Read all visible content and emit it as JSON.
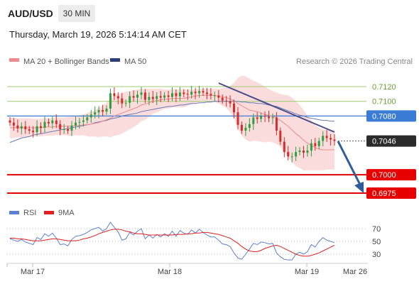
{
  "header": {
    "pair": "AUD/USD",
    "timeframe": "30 MIN",
    "datetime": "Thursday, March 19, 2026 5:14:14 AM CET"
  },
  "legend": {
    "ma20": "MA 20 + Bollinger Bands",
    "ma50": "MA 50",
    "credit": "Research © 2026 Trading Central"
  },
  "rsi_legend": {
    "rsi": "RSI",
    "ma": "9MA"
  },
  "colors": {
    "up": "#2e9e3e",
    "down": "#d62b2b",
    "ma20": "#f08a8a",
    "band": "#f9d0d0",
    "ma50": "#6a7bb5",
    "trend": "#4a4e8a",
    "arrow": "#2f5d9c",
    "resist": "#9ccc70",
    "current": "#3a7bd5",
    "support": "#e60000",
    "rsi": "#5b7fd6",
    "rsi_ma": "#e02020"
  },
  "chart_data": {
    "type": "candlestick",
    "levels": [
      {
        "value": 0.712,
        "label": "0.7120",
        "kind": "resistance"
      },
      {
        "value": 0.71,
        "label": "0.7100",
        "kind": "resistance"
      },
      {
        "value": 0.708,
        "label": "0.7080",
        "kind": "pivot"
      },
      {
        "value": 0.7046,
        "label": "0.7046",
        "kind": "current"
      },
      {
        "value": 0.7,
        "label": "0.7000",
        "kind": "support"
      },
      {
        "value": 0.6975,
        "label": "0.6975",
        "kind": "support"
      }
    ],
    "x_ticks": [
      "Mar 17",
      "Mar 18",
      "Mar 19",
      "Mar 26"
    ],
    "rsi_ticks": [
      70,
      50,
      30
    ],
    "closes": [
      0.7071,
      0.7067,
      0.7063,
      0.7066,
      0.7062,
      0.706,
      0.7058,
      0.7066,
      0.7064,
      0.7072,
      0.707,
      0.7074,
      0.7069,
      0.7062,
      0.7062,
      0.706,
      0.7067,
      0.7071,
      0.7072,
      0.7074,
      0.7078,
      0.7082,
      0.7085,
      0.7088,
      0.7086,
      0.709,
      0.7111,
      0.7107,
      0.7104,
      0.7097,
      0.7098,
      0.7107,
      0.7105,
      0.7109,
      0.7112,
      0.7102,
      0.7106,
      0.7103,
      0.7107,
      0.7105,
      0.7108,
      0.7106,
      0.7111,
      0.7107,
      0.7112,
      0.711,
      0.7109,
      0.7113,
      0.7111,
      0.7114,
      0.7112,
      0.711,
      0.7108,
      0.7108,
      0.7105,
      0.7101,
      0.71,
      0.7097,
      0.7085,
      0.7068,
      0.706,
      0.7064,
      0.7069,
      0.7078,
      0.7076,
      0.708,
      0.7079,
      0.7077,
      0.7078,
      0.706,
      0.7045,
      0.7031,
      0.7025,
      0.7025,
      0.7031,
      0.7033,
      0.703,
      0.7033,
      0.7043,
      0.7039,
      0.7046,
      0.7053,
      0.705,
      0.7048,
      0.7046
    ],
    "ma20": [
      0.7064,
      0.7064,
      0.7064,
      0.7064,
      0.7064,
      0.7064,
      0.7064,
      0.7064,
      0.7064,
      0.7065,
      0.7065,
      0.7065,
      0.7066,
      0.7066,
      0.7066,
      0.7066,
      0.7066,
      0.7067,
      0.7067,
      0.7068,
      0.7068,
      0.7069,
      0.707,
      0.7071,
      0.7073,
      0.7075,
      0.7077,
      0.708,
      0.7082,
      0.7084,
      0.7086,
      0.7088,
      0.709,
      0.7092,
      0.7095,
      0.7096,
      0.7098,
      0.71,
      0.7101,
      0.7102,
      0.7103,
      0.7103,
      0.7104,
      0.7104,
      0.7104,
      0.7104,
      0.7105,
      0.7106,
      0.7107,
      0.7108,
      0.7108,
      0.7108,
      0.7108,
      0.7108,
      0.7107,
      0.7106,
      0.7105,
      0.7103,
      0.7101,
      0.7097,
      0.7094,
      0.7091,
      0.7088,
      0.7087,
      0.7086,
      0.7084,
      0.7082,
      0.7081,
      0.7079,
      0.7077,
      0.7074,
      0.707,
      0.7066,
      0.7061,
      0.7056,
      0.7052,
      0.7047,
      0.7043,
      0.704,
      0.7037,
      0.7035,
      0.7034,
      0.7034,
      0.7034,
      0.7034
    ],
    "ma50": [
      0.7044,
      0.7046,
      0.7048,
      0.705,
      0.7051,
      0.7052,
      0.7054,
      0.7055,
      0.7056,
      0.7057,
      0.7058,
      0.7059,
      0.706,
      0.7061,
      0.7062,
      0.7063,
      0.7064,
      0.7065,
      0.7066,
      0.7067,
      0.7068,
      0.7069,
      0.7071,
      0.7072,
      0.7073,
      0.7074,
      0.7076,
      0.7077,
      0.7078,
      0.708,
      0.7081,
      0.7082,
      0.7083,
      0.7084,
      0.7086,
      0.7087,
      0.7088,
      0.7089,
      0.709,
      0.7091,
      0.7092,
      0.7093,
      0.7093,
      0.7094,
      0.7095,
      0.7095,
      0.7096,
      0.7097,
      0.7097,
      0.7098,
      0.7098,
      0.7099,
      0.7099,
      0.71,
      0.71,
      0.71,
      0.71,
      0.71,
      0.71,
      0.71,
      0.7099,
      0.7099,
      0.7098,
      0.7098,
      0.7097,
      0.7097,
      0.7096,
      0.7095,
      0.7094,
      0.7093,
      0.7091,
      0.7089,
      0.7087,
      0.7085,
      0.7083,
      0.7081,
      0.708,
      0.7078,
      0.7077,
      0.7076,
      0.7075,
      0.7074,
      0.7074,
      0.7073,
      0.7073
    ],
    "bb_upper": [
      0.7078,
      0.7078,
      0.7077,
      0.7077,
      0.7077,
      0.7077,
      0.7076,
      0.7076,
      0.7076,
      0.7077,
      0.7077,
      0.7077,
      0.7078,
      0.7078,
      0.7078,
      0.7079,
      0.7079,
      0.708,
      0.7081,
      0.7082,
      0.7084,
      0.7086,
      0.7088,
      0.7091,
      0.7094,
      0.7098,
      0.7103,
      0.7107,
      0.711,
      0.7112,
      0.7113,
      0.7114,
      0.7115,
      0.7116,
      0.7117,
      0.7117,
      0.7117,
      0.7117,
      0.7117,
      0.7117,
      0.7116,
      0.7116,
      0.7116,
      0.7116,
      0.7116,
      0.7116,
      0.7116,
      0.7116,
      0.7116,
      0.7117,
      0.7117,
      0.7117,
      0.7117,
      0.7117,
      0.7117,
      0.7118,
      0.7119,
      0.7121,
      0.7125,
      0.7132,
      0.7135,
      0.7134,
      0.7131,
      0.7128,
      0.7126,
      0.7123,
      0.712,
      0.7117,
      0.7114,
      0.7112,
      0.711,
      0.7109,
      0.7108,
      0.7105,
      0.71,
      0.7095,
      0.7088,
      0.708,
      0.7074,
      0.7068,
      0.7064,
      0.7062,
      0.7061,
      0.7061,
      0.7061
    ],
    "bb_lower": [
      0.705,
      0.705,
      0.7051,
      0.7051,
      0.7051,
      0.7051,
      0.7052,
      0.7052,
      0.7052,
      0.7053,
      0.7053,
      0.7053,
      0.7054,
      0.7054,
      0.7054,
      0.7053,
      0.7053,
      0.7054,
      0.7053,
      0.7054,
      0.7052,
      0.7052,
      0.7052,
      0.7051,
      0.7052,
      0.7052,
      0.7051,
      0.7053,
      0.7054,
      0.7056,
      0.7059,
      0.7062,
      0.7065,
      0.7068,
      0.7073,
      0.7075,
      0.7079,
      0.7083,
      0.7085,
      0.7087,
      0.709,
      0.709,
      0.7092,
      0.7092,
      0.7092,
      0.7092,
      0.7094,
      0.7096,
      0.7098,
      0.7099,
      0.7099,
      0.7099,
      0.7099,
      0.7099,
      0.7097,
      0.7094,
      0.7091,
      0.7085,
      0.7077,
      0.7062,
      0.7053,
      0.7048,
      0.7045,
      0.7046,
      0.7046,
      0.7045,
      0.7044,
      0.7045,
      0.7044,
      0.7042,
      0.7038,
      0.7031,
      0.7024,
      0.7017,
      0.7012,
      0.7009,
      0.7006,
      0.7006,
      0.7006,
      0.7006,
      0.7006,
      0.7006,
      0.7007,
      0.7007,
      0.7007
    ],
    "rsi": [
      54,
      52,
      50,
      53,
      49,
      47,
      45,
      56,
      53,
      62,
      58,
      63,
      55,
      45,
      46,
      43,
      53,
      58,
      59,
      61,
      64,
      68,
      70,
      72,
      66,
      70,
      80,
      72,
      65,
      52,
      54,
      64,
      60,
      66,
      70,
      54,
      60,
      55,
      61,
      57,
      62,
      58,
      66,
      58,
      67,
      63,
      61,
      68,
      63,
      69,
      64,
      60,
      57,
      57,
      52,
      46,
      45,
      42,
      32,
      24,
      22,
      30,
      38,
      47,
      45,
      49,
      48,
      46,
      47,
      32,
      26,
      22,
      21,
      21,
      30,
      33,
      30,
      34,
      45,
      41,
      50,
      56,
      52,
      50,
      48
    ],
    "rsi_ma": [
      55,
      55,
      54,
      54,
      53,
      52,
      51,
      51,
      51,
      52,
      53,
      54,
      54,
      53,
      52,
      51,
      51,
      51,
      52,
      54,
      55,
      57,
      59,
      62,
      64,
      66,
      68,
      69,
      69,
      68,
      66,
      65,
      63,
      62,
      62,
      61,
      60,
      60,
      60,
      60,
      60,
      60,
      60,
      61,
      61,
      61,
      62,
      62,
      63,
      63,
      64,
      64,
      63,
      62,
      61,
      59,
      57,
      55,
      51,
      47,
      42,
      38,
      35,
      34,
      34,
      36,
      39,
      41,
      43,
      44,
      42,
      39,
      36,
      33,
      30,
      28,
      27,
      27,
      28,
      30,
      32,
      35,
      38,
      41,
      44
    ]
  }
}
